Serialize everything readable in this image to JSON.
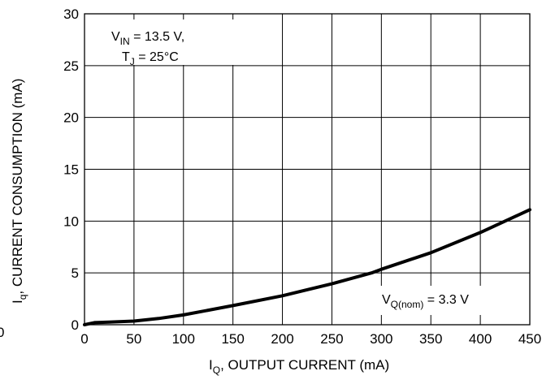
{
  "chart_data": {
    "type": "line",
    "xlabel": {
      "main": "I",
      "sub": "Q",
      "rest": ", OUTPUT CURRENT (mA)"
    },
    "ylabel": {
      "main": "I",
      "sub": "q",
      "rest": ", CURRENT CONSUMPTION (mA)"
    },
    "xlim": [
      0,
      450
    ],
    "ylim": [
      0,
      30
    ],
    "xticks": [
      "0",
      "50",
      "100",
      "150",
      "200",
      "250",
      "300",
      "350",
      "400",
      "450"
    ],
    "yticks": [
      "0",
      "5",
      "10",
      "15",
      "20",
      "25",
      "30"
    ],
    "stray_label": "0",
    "grid": true,
    "annotations": {
      "conditions": {
        "vin_main": "V",
        "vin_sub": "IN",
        "vin_rest": " = 13.5 V,",
        "tj_main": "T",
        "tj_sub": "J",
        "tj_rest": " = 25°C"
      },
      "vq": {
        "main": "V",
        "sub": "Q(nom)",
        "rest": " = 3.3 V"
      }
    },
    "series": [
      {
        "x": [
          0,
          5,
          10,
          25,
          50,
          75,
          100,
          150,
          200,
          250,
          290,
          300,
          350,
          400,
          450
        ],
        "y": [
          0,
          0.1,
          0.2,
          0.25,
          0.35,
          0.6,
          0.95,
          1.85,
          2.8,
          3.95,
          5.0,
          5.35,
          6.95,
          8.9,
          11.1
        ]
      }
    ]
  }
}
